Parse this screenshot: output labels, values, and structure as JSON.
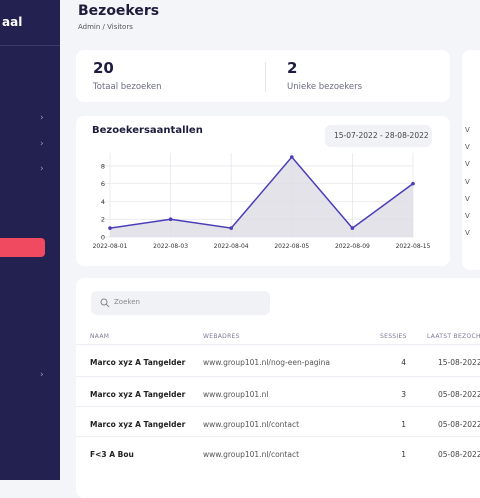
{
  "sidebar": {
    "title": "aal"
  },
  "header": {
    "title": "Bezoekers",
    "breadcrumb": "Admin / Visitors"
  },
  "stats": [
    {
      "value": "20",
      "label": "Totaal bezoeken"
    },
    {
      "value": "2",
      "label": "Unieke bezoekers"
    }
  ],
  "side_panel": {
    "items": [
      "V",
      "V",
      "V",
      "V",
      "V",
      "V",
      "V"
    ]
  },
  "chart_data": {
    "type": "line",
    "title": "Bezoekersaantallen",
    "date_range": "15-07-2022 - 28-08-2022",
    "categories": [
      "2022-08-01",
      "2022-08-03",
      "2022-08-04",
      "2022-08-05",
      "2022-08-09",
      "2022-08-15"
    ],
    "series": [
      {
        "name": "Bezoeken",
        "color": "#4a3db8",
        "values": [
          1,
          2,
          1,
          9,
          1,
          6
        ]
      }
    ],
    "ylim": [
      0,
      9
    ],
    "yticks": [
      0,
      2,
      4,
      6,
      8
    ],
    "grid": true
  },
  "table": {
    "search_placeholder": "Zoeken",
    "columns": [
      "NAAM",
      "WEBADRES",
      "SESSIES",
      "LAATST BEZOCHT"
    ],
    "rows": [
      [
        "Marco xyz A Tangelder",
        "www.group101.nl/nog-een-pagina",
        "4",
        "15-08-2022"
      ],
      [
        "Marco xyz A Tangelder",
        "www.group101.nl",
        "3",
        "05-08-2022"
      ],
      [
        "Marco xyz A Tangelder",
        "www.group101.nl/contact",
        "1",
        "05-08-2022"
      ],
      [
        "F<3 A Bou",
        "www.group101.nl/contact",
        "1",
        "05-08-2022"
      ]
    ]
  }
}
